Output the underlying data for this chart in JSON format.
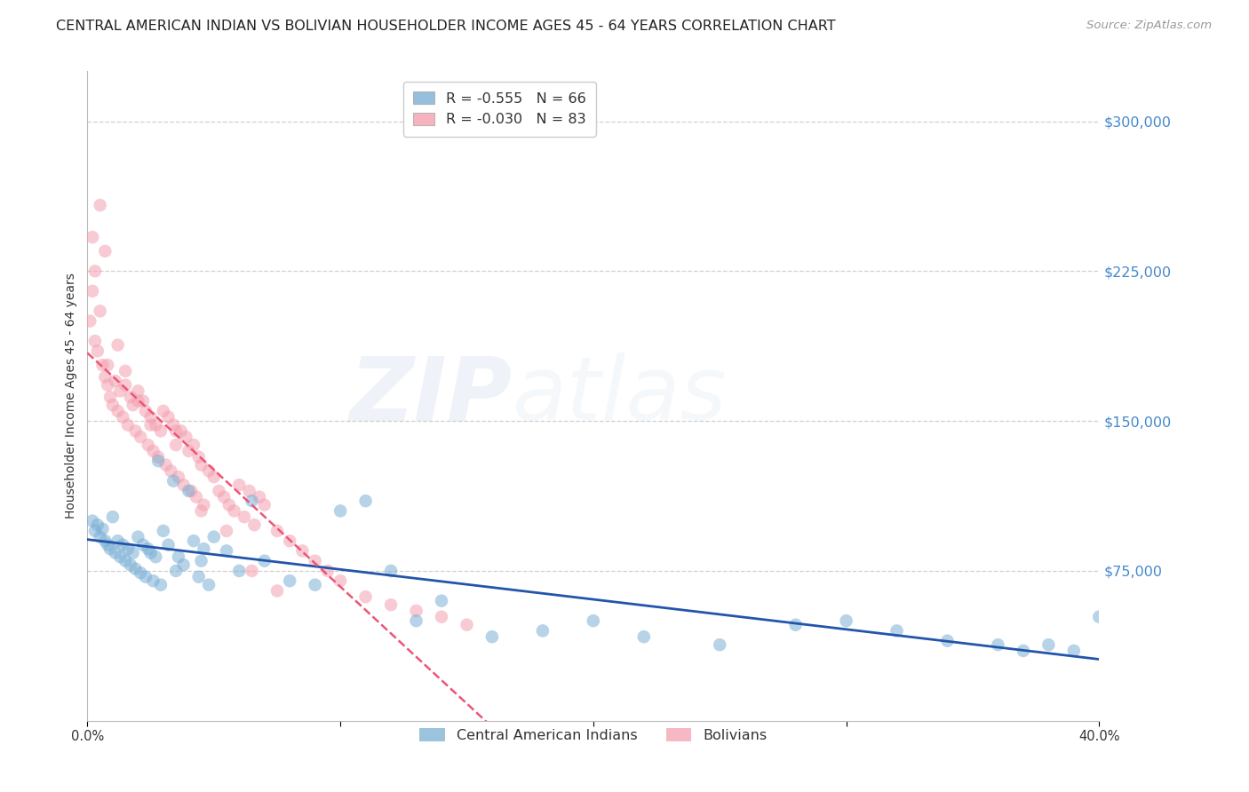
{
  "title": "CENTRAL AMERICAN INDIAN VS BOLIVIAN HOUSEHOLDER INCOME AGES 45 - 64 YEARS CORRELATION CHART",
  "source": "Source: ZipAtlas.com",
  "ylabel": "Householder Income Ages 45 - 64 years",
  "xlim": [
    0.0,
    0.4
  ],
  "ylim": [
    0,
    325000
  ],
  "yticks": [
    75000,
    150000,
    225000,
    300000
  ],
  "ytick_labels": [
    "$75,000",
    "$150,000",
    "$225,000",
    "$300,000"
  ],
  "xticks": [
    0.0,
    0.1,
    0.2,
    0.3,
    0.4
  ],
  "xtick_labels": [
    "0.0%",
    "",
    "",
    "",
    "40.0%"
  ],
  "legend_blue_r": "R = -0.555",
  "legend_blue_n": "N = 66",
  "legend_pink_r": "R = -0.030",
  "legend_pink_n": "N = 83",
  "legend_label_blue": "Central American Indians",
  "legend_label_pink": "Bolivians",
  "blue_color": "#7BAFD4",
  "pink_color": "#F4A0B0",
  "blue_line_color": "#2255AA",
  "pink_line_color": "#EE5577",
  "watermark_zip": "ZIP",
  "watermark_atlas": "atlas",
  "title_fontsize": 11.5,
  "source_fontsize": 9.5,
  "ylabel_fontsize": 10,
  "blue_scatter_x": [
    0.002,
    0.003,
    0.004,
    0.005,
    0.006,
    0.007,
    0.008,
    0.009,
    0.01,
    0.011,
    0.012,
    0.013,
    0.014,
    0.015,
    0.016,
    0.017,
    0.018,
    0.019,
    0.02,
    0.021,
    0.022,
    0.023,
    0.024,
    0.025,
    0.026,
    0.027,
    0.028,
    0.029,
    0.03,
    0.032,
    0.034,
    0.036,
    0.038,
    0.04,
    0.042,
    0.044,
    0.046,
    0.048,
    0.05,
    0.055,
    0.06,
    0.065,
    0.07,
    0.08,
    0.09,
    0.1,
    0.11,
    0.12,
    0.13,
    0.14,
    0.16,
    0.18,
    0.2,
    0.22,
    0.25,
    0.28,
    0.3,
    0.32,
    0.34,
    0.36,
    0.37,
    0.38,
    0.39,
    0.4,
    0.035,
    0.045
  ],
  "blue_scatter_y": [
    100000,
    95000,
    98000,
    92000,
    96000,
    90000,
    88000,
    86000,
    102000,
    84000,
    90000,
    82000,
    88000,
    80000,
    86000,
    78000,
    84000,
    76000,
    92000,
    74000,
    88000,
    72000,
    86000,
    84000,
    70000,
    82000,
    130000,
    68000,
    95000,
    88000,
    120000,
    82000,
    78000,
    115000,
    90000,
    72000,
    86000,
    68000,
    92000,
    85000,
    75000,
    110000,
    80000,
    70000,
    68000,
    105000,
    110000,
    75000,
    50000,
    60000,
    42000,
    45000,
    50000,
    42000,
    38000,
    48000,
    50000,
    45000,
    40000,
    38000,
    35000,
    38000,
    35000,
    52000,
    75000,
    80000
  ],
  "pink_scatter_x": [
    0.001,
    0.002,
    0.003,
    0.004,
    0.005,
    0.006,
    0.007,
    0.008,
    0.009,
    0.01,
    0.011,
    0.012,
    0.013,
    0.014,
    0.015,
    0.016,
    0.017,
    0.018,
    0.019,
    0.02,
    0.021,
    0.022,
    0.023,
    0.024,
    0.025,
    0.026,
    0.027,
    0.028,
    0.029,
    0.03,
    0.031,
    0.032,
    0.033,
    0.034,
    0.035,
    0.036,
    0.037,
    0.038,
    0.039,
    0.04,
    0.041,
    0.042,
    0.043,
    0.044,
    0.045,
    0.046,
    0.048,
    0.05,
    0.052,
    0.054,
    0.056,
    0.058,
    0.06,
    0.062,
    0.064,
    0.066,
    0.068,
    0.07,
    0.075,
    0.08,
    0.085,
    0.09,
    0.095,
    0.1,
    0.11,
    0.12,
    0.13,
    0.14,
    0.15,
    0.002,
    0.005,
    0.008,
    0.015,
    0.025,
    0.035,
    0.045,
    0.055,
    0.065,
    0.075,
    0.003,
    0.007,
    0.012,
    0.02
  ],
  "pink_scatter_y": [
    200000,
    215000,
    190000,
    185000,
    205000,
    178000,
    172000,
    168000,
    162000,
    158000,
    170000,
    155000,
    165000,
    152000,
    168000,
    148000,
    162000,
    158000,
    145000,
    165000,
    142000,
    160000,
    155000,
    138000,
    152000,
    135000,
    148000,
    132000,
    145000,
    155000,
    128000,
    152000,
    125000,
    148000,
    138000,
    122000,
    145000,
    118000,
    142000,
    135000,
    115000,
    138000,
    112000,
    132000,
    128000,
    108000,
    125000,
    122000,
    115000,
    112000,
    108000,
    105000,
    118000,
    102000,
    115000,
    98000,
    112000,
    108000,
    95000,
    90000,
    85000,
    80000,
    75000,
    70000,
    62000,
    58000,
    55000,
    52000,
    48000,
    242000,
    258000,
    178000,
    175000,
    148000,
    145000,
    105000,
    95000,
    75000,
    65000,
    225000,
    235000,
    188000,
    160000
  ]
}
